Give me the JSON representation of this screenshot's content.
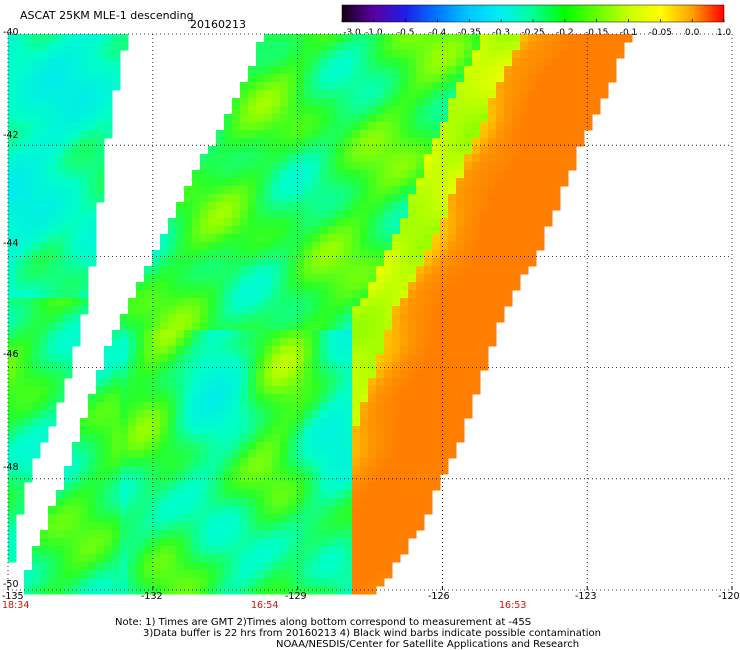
{
  "header": {
    "title": "ASCAT 25KM MLE-1 descending",
    "date": "20160213"
  },
  "colorbar": {
    "labels": [
      "-3.0",
      "-1.0",
      "-0.5",
      "-0.4",
      "-0.35",
      "-0.3",
      "-0.25",
      "-0.2",
      "-0.15",
      "-0.1",
      "-0.05",
      "0.0",
      "1.0"
    ],
    "colors": [
      "#140014",
      "#5a00a0",
      "#1e1ee6",
      "#0078ff",
      "#00c8ff",
      "#00f0f0",
      "#00ff96",
      "#00ff00",
      "#64ff00",
      "#c8ff00",
      "#ffff00",
      "#ffa000",
      "#ff0000"
    ]
  },
  "map": {
    "lat_labels": [
      "-40",
      "-42",
      "-44",
      "-46",
      "-48",
      "-50"
    ],
    "lon_labels": [
      "-135",
      "-132",
      "-129",
      "-126",
      "-123",
      "-120"
    ],
    "lat_values": [
      -40,
      -42,
      -44,
      -46,
      -48,
      -50
    ],
    "lon_values": [
      -135,
      -132,
      -129,
      -126,
      -123,
      -120
    ],
    "pass_times": [
      {
        "time": "18:34",
        "lon": -135
      },
      {
        "time": "16:54",
        "lon": -129.5
      },
      {
        "time": "16:53",
        "lon": -124.5
      }
    ]
  },
  "footer": {
    "note_line1": "Note: 1) Times are GMT 2)Times along bottom correspond to measurement at -45S",
    "note_line2": "3)Data buffer is 22 hrs from 20160213 4) Black wind barbs indicate possible contamination",
    "credit": "NOAA/NESDIS/Center for Satellite Applications and Research"
  }
}
